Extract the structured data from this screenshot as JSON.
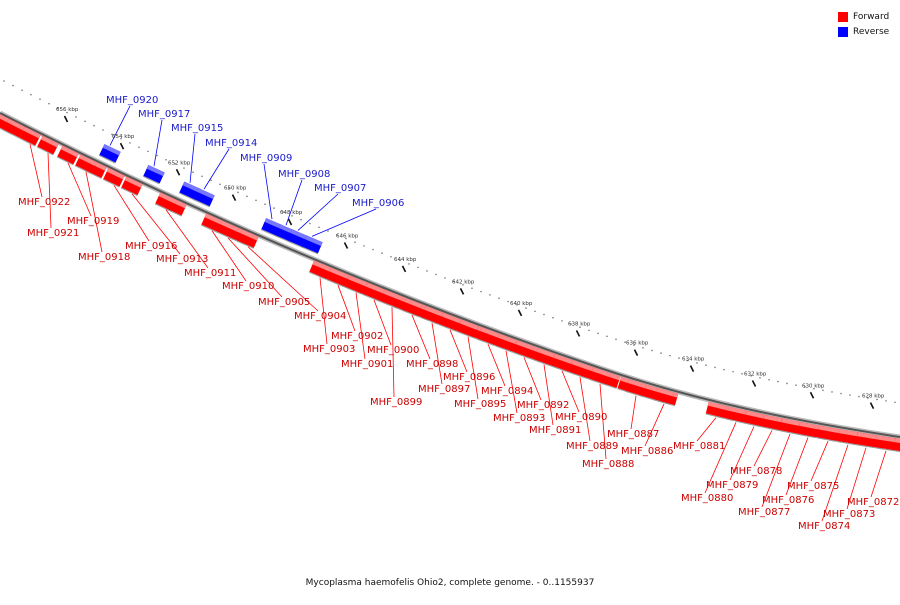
{
  "legend": {
    "forward_label": "Forward",
    "reverse_label": "Reverse",
    "forward_color": "#ff0000",
    "reverse_color": "#0000ff"
  },
  "caption": "Mycoplasma haemofelis Ohio2, complete genome. - 0..1155937",
  "scale_ticks": [
    "656 kbp",
    "654 kbp",
    "652 kbp",
    "650 kbp",
    "648 kbp",
    "646 kbp",
    "644 kbp",
    "642 kbp",
    "640 kbp",
    "638 kbp",
    "636 kbp",
    "634 kbp",
    "632 kbp",
    "630 kbp",
    "628 kbp"
  ],
  "genes": [
    {
      "id": "MHF_0922",
      "strand": "forward"
    },
    {
      "id": "MHF_0921",
      "strand": "forward"
    },
    {
      "id": "MHF_0920",
      "strand": "reverse"
    },
    {
      "id": "MHF_0919",
      "strand": "forward"
    },
    {
      "id": "MHF_0918",
      "strand": "forward"
    },
    {
      "id": "MHF_0917",
      "strand": "reverse"
    },
    {
      "id": "MHF_0916",
      "strand": "forward"
    },
    {
      "id": "MHF_0915",
      "strand": "reverse"
    },
    {
      "id": "MHF_0914",
      "strand": "reverse"
    },
    {
      "id": "MHF_0913",
      "strand": "forward"
    },
    {
      "id": "MHF_0911",
      "strand": "forward"
    },
    {
      "id": "MHF_0910",
      "strand": "forward"
    },
    {
      "id": "MHF_0909",
      "strand": "reverse"
    },
    {
      "id": "MHF_0908",
      "strand": "reverse"
    },
    {
      "id": "MHF_0907",
      "strand": "reverse"
    },
    {
      "id": "MHF_0906",
      "strand": "reverse"
    },
    {
      "id": "MHF_0905",
      "strand": "forward"
    },
    {
      "id": "MHF_0904",
      "strand": "forward"
    },
    {
      "id": "MHF_0903",
      "strand": "forward"
    },
    {
      "id": "MHF_0902",
      "strand": "forward"
    },
    {
      "id": "MHF_0901",
      "strand": "forward"
    },
    {
      "id": "MHF_0900",
      "strand": "forward"
    },
    {
      "id": "MHF_0899",
      "strand": "forward"
    },
    {
      "id": "MHF_0898",
      "strand": "forward"
    },
    {
      "id": "MHF_0897",
      "strand": "forward"
    },
    {
      "id": "MHF_0896",
      "strand": "forward"
    },
    {
      "id": "MHF_0895",
      "strand": "forward"
    },
    {
      "id": "MHF_0894",
      "strand": "forward"
    },
    {
      "id": "MHF_0893",
      "strand": "forward"
    },
    {
      "id": "MHF_0892",
      "strand": "forward"
    },
    {
      "id": "MHF_0891",
      "strand": "forward"
    },
    {
      "id": "MHF_0890",
      "strand": "forward"
    },
    {
      "id": "MHF_0889",
      "strand": "forward"
    },
    {
      "id": "MHF_0888",
      "strand": "forward"
    },
    {
      "id": "MHF_0887",
      "strand": "forward"
    },
    {
      "id": "MHF_0886",
      "strand": "forward"
    },
    {
      "id": "MHF_0881",
      "strand": "forward"
    },
    {
      "id": "MHF_0880",
      "strand": "forward"
    },
    {
      "id": "MHF_0879",
      "strand": "forward"
    },
    {
      "id": "MHF_0878",
      "strand": "forward"
    },
    {
      "id": "MHF_0877",
      "strand": "forward"
    },
    {
      "id": "MHF_0876",
      "strand": "forward"
    },
    {
      "id": "MHF_0875",
      "strand": "forward"
    },
    {
      "id": "MHF_0874",
      "strand": "forward"
    },
    {
      "id": "MHF_0873",
      "strand": "forward"
    },
    {
      "id": "MHF_0872",
      "strand": "forward"
    }
  ]
}
